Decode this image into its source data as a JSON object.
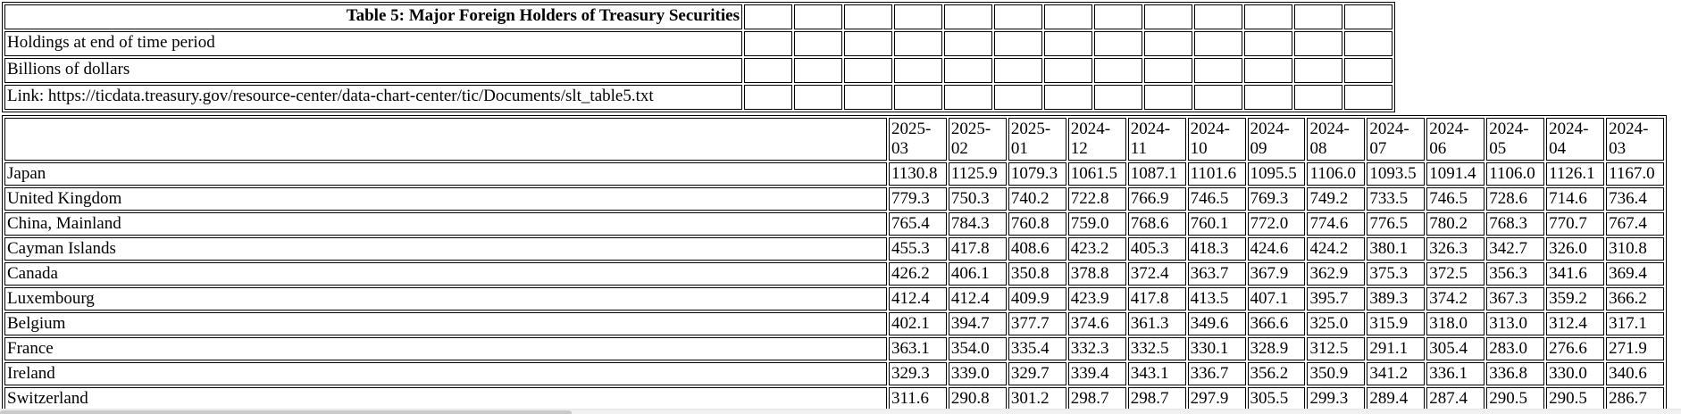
{
  "page": {
    "background": "#ffffff",
    "border_color": "#000000"
  },
  "info_table": {
    "title": "Table 5: Major Foreign Holders of Treasury Securities",
    "rows": [
      "Holdings at end of time period",
      "Billions of dollars",
      "Link: https://ticdata.treasury.gov/resource-center/data-chart-center/tic/Documents/slt_table5.txt"
    ],
    "empty_cell_count": 13
  },
  "chart_data": {
    "type": "table",
    "title": "Table 5: Major Foreign Holders of Treasury Securities",
    "units": "Billions of dollars",
    "columns": [
      "2025-03",
      "2025-02",
      "2025-01",
      "2024-12",
      "2024-11",
      "2024-10",
      "2024-09",
      "2024-08",
      "2024-07",
      "2024-06",
      "2024-05",
      "2024-04",
      "2024-03"
    ],
    "rows": [
      {
        "label": "Japan",
        "values": [
          "1130.8",
          "1125.9",
          "1079.3",
          "1061.5",
          "1087.1",
          "1101.6",
          "1095.5",
          "1106.0",
          "1093.5",
          "1091.4",
          "1106.0",
          "1126.1",
          "1167.0"
        ]
      },
      {
        "label": "United Kingdom",
        "values": [
          "779.3",
          "750.3",
          "740.2",
          "722.8",
          "766.9",
          "746.5",
          "769.3",
          "749.2",
          "733.5",
          "746.5",
          "728.6",
          "714.6",
          "736.4"
        ]
      },
      {
        "label": "China, Mainland",
        "values": [
          "765.4",
          "784.3",
          "760.8",
          "759.0",
          "768.6",
          "760.1",
          "772.0",
          "774.6",
          "776.5",
          "780.2",
          "768.3",
          "770.7",
          "767.4"
        ]
      },
      {
        "label": "Cayman Islands",
        "values": [
          "455.3",
          "417.8",
          "408.6",
          "423.2",
          "405.3",
          "418.3",
          "424.6",
          "424.2",
          "380.1",
          "326.3",
          "342.7",
          "326.0",
          "310.8"
        ]
      },
      {
        "label": "Canada",
        "values": [
          "426.2",
          "406.1",
          "350.8",
          "378.8",
          "372.4",
          "363.7",
          "367.9",
          "362.9",
          "375.3",
          "372.5",
          "356.3",
          "341.6",
          "369.4"
        ]
      },
      {
        "label": "Luxembourg",
        "values": [
          "412.4",
          "412.4",
          "409.9",
          "423.9",
          "417.8",
          "413.5",
          "407.1",
          "395.7",
          "389.3",
          "374.2",
          "367.3",
          "359.2",
          "366.2"
        ]
      },
      {
        "label": "Belgium",
        "values": [
          "402.1",
          "394.7",
          "377.7",
          "374.6",
          "361.3",
          "349.6",
          "366.6",
          "325.0",
          "315.9",
          "318.0",
          "313.0",
          "312.4",
          "317.1"
        ]
      },
      {
        "label": "France",
        "values": [
          "363.1",
          "354.0",
          "335.4",
          "332.3",
          "332.5",
          "330.1",
          "328.9",
          "312.5",
          "291.1",
          "305.4",
          "283.0",
          "276.6",
          "271.9"
        ]
      },
      {
        "label": "Ireland",
        "values": [
          "329.3",
          "339.0",
          "329.7",
          "339.4",
          "343.1",
          "336.7",
          "356.2",
          "350.9",
          "341.2",
          "336.1",
          "336.8",
          "330.0",
          "340.6"
        ]
      },
      {
        "label": "Switzerland",
        "values": [
          "311.6",
          "290.8",
          "301.2",
          "298.7",
          "298.7",
          "297.9",
          "305.5",
          "299.3",
          "289.4",
          "287.4",
          "290.5",
          "290.5",
          "286.7"
        ]
      }
    ]
  }
}
